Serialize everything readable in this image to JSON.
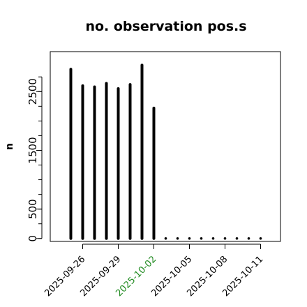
{
  "chart_data": {
    "type": "bar",
    "title": "no. observation pos.s",
    "xlabel": "",
    "ylabel": "n",
    "ylim": [
      -50,
      3180
    ],
    "y_ticks": [
      0,
      500,
      1500,
      2500
    ],
    "x_tick_labels": [
      "2025-09-26",
      "2025-09-29",
      "2025-10-02",
      "2025-10-05",
      "2025-10-08",
      "2025-10-11"
    ],
    "highlight_tick": "2025-10-02",
    "highlight_color": "#228B22",
    "bar_color": "#000000",
    "categories": [
      "2025-09-25",
      "2025-09-26",
      "2025-09-27",
      "2025-09-28",
      "2025-09-29",
      "2025-09-30",
      "2025-10-01",
      "2025-10-02",
      "2025-10-03",
      "2025-10-04",
      "2025-10-05",
      "2025-10-06",
      "2025-10-07",
      "2025-10-08",
      "2025-10-09",
      "2025-10-10",
      "2025-10-11"
    ],
    "values": [
      2880,
      2600,
      2580,
      2640,
      2550,
      2620,
      2950,
      2220,
      0,
      0,
      0,
      0,
      0,
      0,
      0,
      0,
      0
    ],
    "grid": false
  }
}
